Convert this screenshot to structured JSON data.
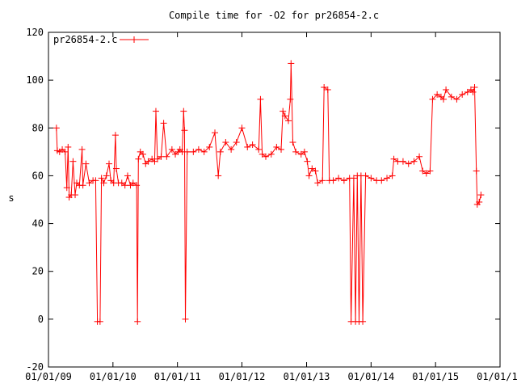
{
  "chart_data": {
    "type": "line",
    "title": "Compile time for -O2 for pr26854-2.c",
    "xlabel": "",
    "ylabel": "s",
    "ylim": [
      -20,
      120
    ],
    "yticks": [
      -20,
      0,
      20,
      40,
      60,
      80,
      100,
      120
    ],
    "xlim": [
      "2009-01-01",
      "2016-01-01"
    ],
    "xticks": [
      "2009-01-01",
      "2010-01-01",
      "2011-01-01",
      "2012-01-01",
      "2013-01-01",
      "2014-01-01",
      "2015-01-01",
      "2016-01-01"
    ],
    "xtick_labels": [
      "01/01/09",
      "01/01/10",
      "01/01/11",
      "01/01/12",
      "01/01/13",
      "01/01/14",
      "01/01/15",
      "01/01/16"
    ],
    "grid": false,
    "legend_position": "top-left",
    "series": [
      {
        "name": "pr26854-2.c",
        "color": "#ff0000",
        "marker": "plus",
        "points": [
          [
            "2009-02-15",
            80
          ],
          [
            "2009-02-20",
            70.5
          ],
          [
            "2009-03-05",
            70
          ],
          [
            "2009-03-20",
            71
          ],
          [
            "2009-04-05",
            70
          ],
          [
            "2009-04-15",
            55
          ],
          [
            "2009-04-22",
            72
          ],
          [
            "2009-04-28",
            51
          ],
          [
            "2009-05-10",
            52
          ],
          [
            "2009-05-20",
            66
          ],
          [
            "2009-06-01",
            52
          ],
          [
            "2009-06-10",
            57
          ],
          [
            "2009-06-25",
            56
          ],
          [
            "2009-07-10",
            71
          ],
          [
            "2009-07-15",
            56
          ],
          [
            "2009-08-01",
            65
          ],
          [
            "2009-08-20",
            57
          ],
          [
            "2009-09-10",
            58
          ],
          [
            "2009-09-25",
            58
          ],
          [
            "2009-10-05",
            -1
          ],
          [
            "2009-10-20",
            -1
          ],
          [
            "2009-10-28",
            59
          ],
          [
            "2009-11-10",
            57
          ],
          [
            "2009-11-25",
            60
          ],
          [
            "2009-12-10",
            65
          ],
          [
            "2009-12-20",
            58
          ],
          [
            "2010-01-05",
            57
          ],
          [
            "2010-01-15",
            77
          ],
          [
            "2010-01-20",
            63
          ],
          [
            "2010-02-01",
            57
          ],
          [
            "2010-02-20",
            57
          ],
          [
            "2010-03-10",
            56
          ],
          [
            "2010-03-25",
            60
          ],
          [
            "2010-04-10",
            56
          ],
          [
            "2010-04-25",
            57
          ],
          [
            "2010-05-15",
            56
          ],
          [
            "2010-05-20",
            -1
          ],
          [
            "2010-05-25",
            67
          ],
          [
            "2010-06-05",
            70
          ],
          [
            "2010-06-20",
            69
          ],
          [
            "2010-07-05",
            65
          ],
          [
            "2010-07-20",
            66
          ],
          [
            "2010-08-10",
            67
          ],
          [
            "2010-08-25",
            66
          ],
          [
            "2010-09-01",
            87
          ],
          [
            "2010-09-10",
            67
          ],
          [
            "2010-10-01",
            68
          ],
          [
            "2010-10-15",
            82
          ],
          [
            "2010-11-01",
            68
          ],
          [
            "2010-12-01",
            71
          ],
          [
            "2010-12-20",
            69
          ],
          [
            "2011-01-05",
            70
          ],
          [
            "2011-01-15",
            71
          ],
          [
            "2011-01-28",
            70
          ],
          [
            "2011-02-05",
            87
          ],
          [
            "2011-02-10",
            79
          ],
          [
            "2011-02-15",
            0
          ],
          [
            "2011-02-25",
            70
          ],
          [
            "2011-04-01",
            70
          ],
          [
            "2011-05-01",
            71
          ],
          [
            "2011-06-01",
            70
          ],
          [
            "2011-07-01",
            72
          ],
          [
            "2011-08-01",
            78
          ],
          [
            "2011-08-20",
            60
          ],
          [
            "2011-09-01",
            70
          ],
          [
            "2011-10-01",
            74
          ],
          [
            "2011-11-01",
            71
          ],
          [
            "2011-12-01",
            74
          ],
          [
            "2012-01-01",
            80
          ],
          [
            "2012-02-01",
            72
          ],
          [
            "2012-03-01",
            73
          ],
          [
            "2012-04-05",
            71
          ],
          [
            "2012-04-15",
            92
          ],
          [
            "2012-04-25",
            69
          ],
          [
            "2012-05-15",
            68
          ],
          [
            "2012-06-15",
            69
          ],
          [
            "2012-07-15",
            72
          ],
          [
            "2012-08-10",
            71
          ],
          [
            "2012-08-20",
            87
          ],
          [
            "2012-09-01",
            85
          ],
          [
            "2012-09-20",
            83
          ],
          [
            "2012-10-01",
            92
          ],
          [
            "2012-10-05",
            107
          ],
          [
            "2012-10-15",
            74
          ],
          [
            "2012-11-01",
            70
          ],
          [
            "2012-12-01",
            69
          ],
          [
            "2012-12-20",
            70
          ],
          [
            "2013-01-05",
            66
          ],
          [
            "2013-01-15",
            60
          ],
          [
            "2013-02-01",
            63
          ],
          [
            "2013-02-20",
            62
          ],
          [
            "2013-03-05",
            57
          ],
          [
            "2013-04-01",
            58
          ],
          [
            "2013-04-10",
            97
          ],
          [
            "2013-05-01",
            96
          ],
          [
            "2013-05-10",
            58
          ],
          [
            "2013-06-01",
            58
          ],
          [
            "2013-07-01",
            59
          ],
          [
            "2013-08-01",
            58
          ],
          [
            "2013-09-01",
            59
          ],
          [
            "2013-09-10",
            -1
          ],
          [
            "2013-09-25",
            59
          ],
          [
            "2013-10-05",
            -1
          ],
          [
            "2013-10-15",
            60
          ],
          [
            "2013-10-25",
            -1
          ],
          [
            "2013-11-05",
            60
          ],
          [
            "2013-11-15",
            -1
          ],
          [
            "2013-12-01",
            60
          ],
          [
            "2014-01-01",
            59
          ],
          [
            "2014-02-01",
            58
          ],
          [
            "2014-03-01",
            58
          ],
          [
            "2014-04-01",
            59
          ],
          [
            "2014-05-01",
            60
          ],
          [
            "2014-05-10",
            67
          ],
          [
            "2014-06-01",
            66
          ],
          [
            "2014-07-01",
            66
          ],
          [
            "2014-08-01",
            65
          ],
          [
            "2014-09-01",
            66
          ],
          [
            "2014-10-01",
            68
          ],
          [
            "2014-10-20",
            62
          ],
          [
            "2014-11-10",
            61
          ],
          [
            "2014-12-01",
            62
          ],
          [
            "2014-12-15",
            92
          ],
          [
            "2015-01-10",
            94
          ],
          [
            "2015-02-01",
            93
          ],
          [
            "2015-02-15",
            92
          ],
          [
            "2015-03-01",
            96
          ],
          [
            "2015-04-01",
            93
          ],
          [
            "2015-05-01",
            92
          ],
          [
            "2015-06-01",
            94
          ],
          [
            "2015-07-01",
            95
          ],
          [
            "2015-07-20",
            96
          ],
          [
            "2015-08-01",
            95
          ],
          [
            "2015-08-10",
            97
          ],
          [
            "2015-08-20",
            62
          ],
          [
            "2015-08-25",
            48
          ],
          [
            "2015-09-05",
            49
          ],
          [
            "2015-09-15",
            52
          ]
        ]
      }
    ]
  }
}
